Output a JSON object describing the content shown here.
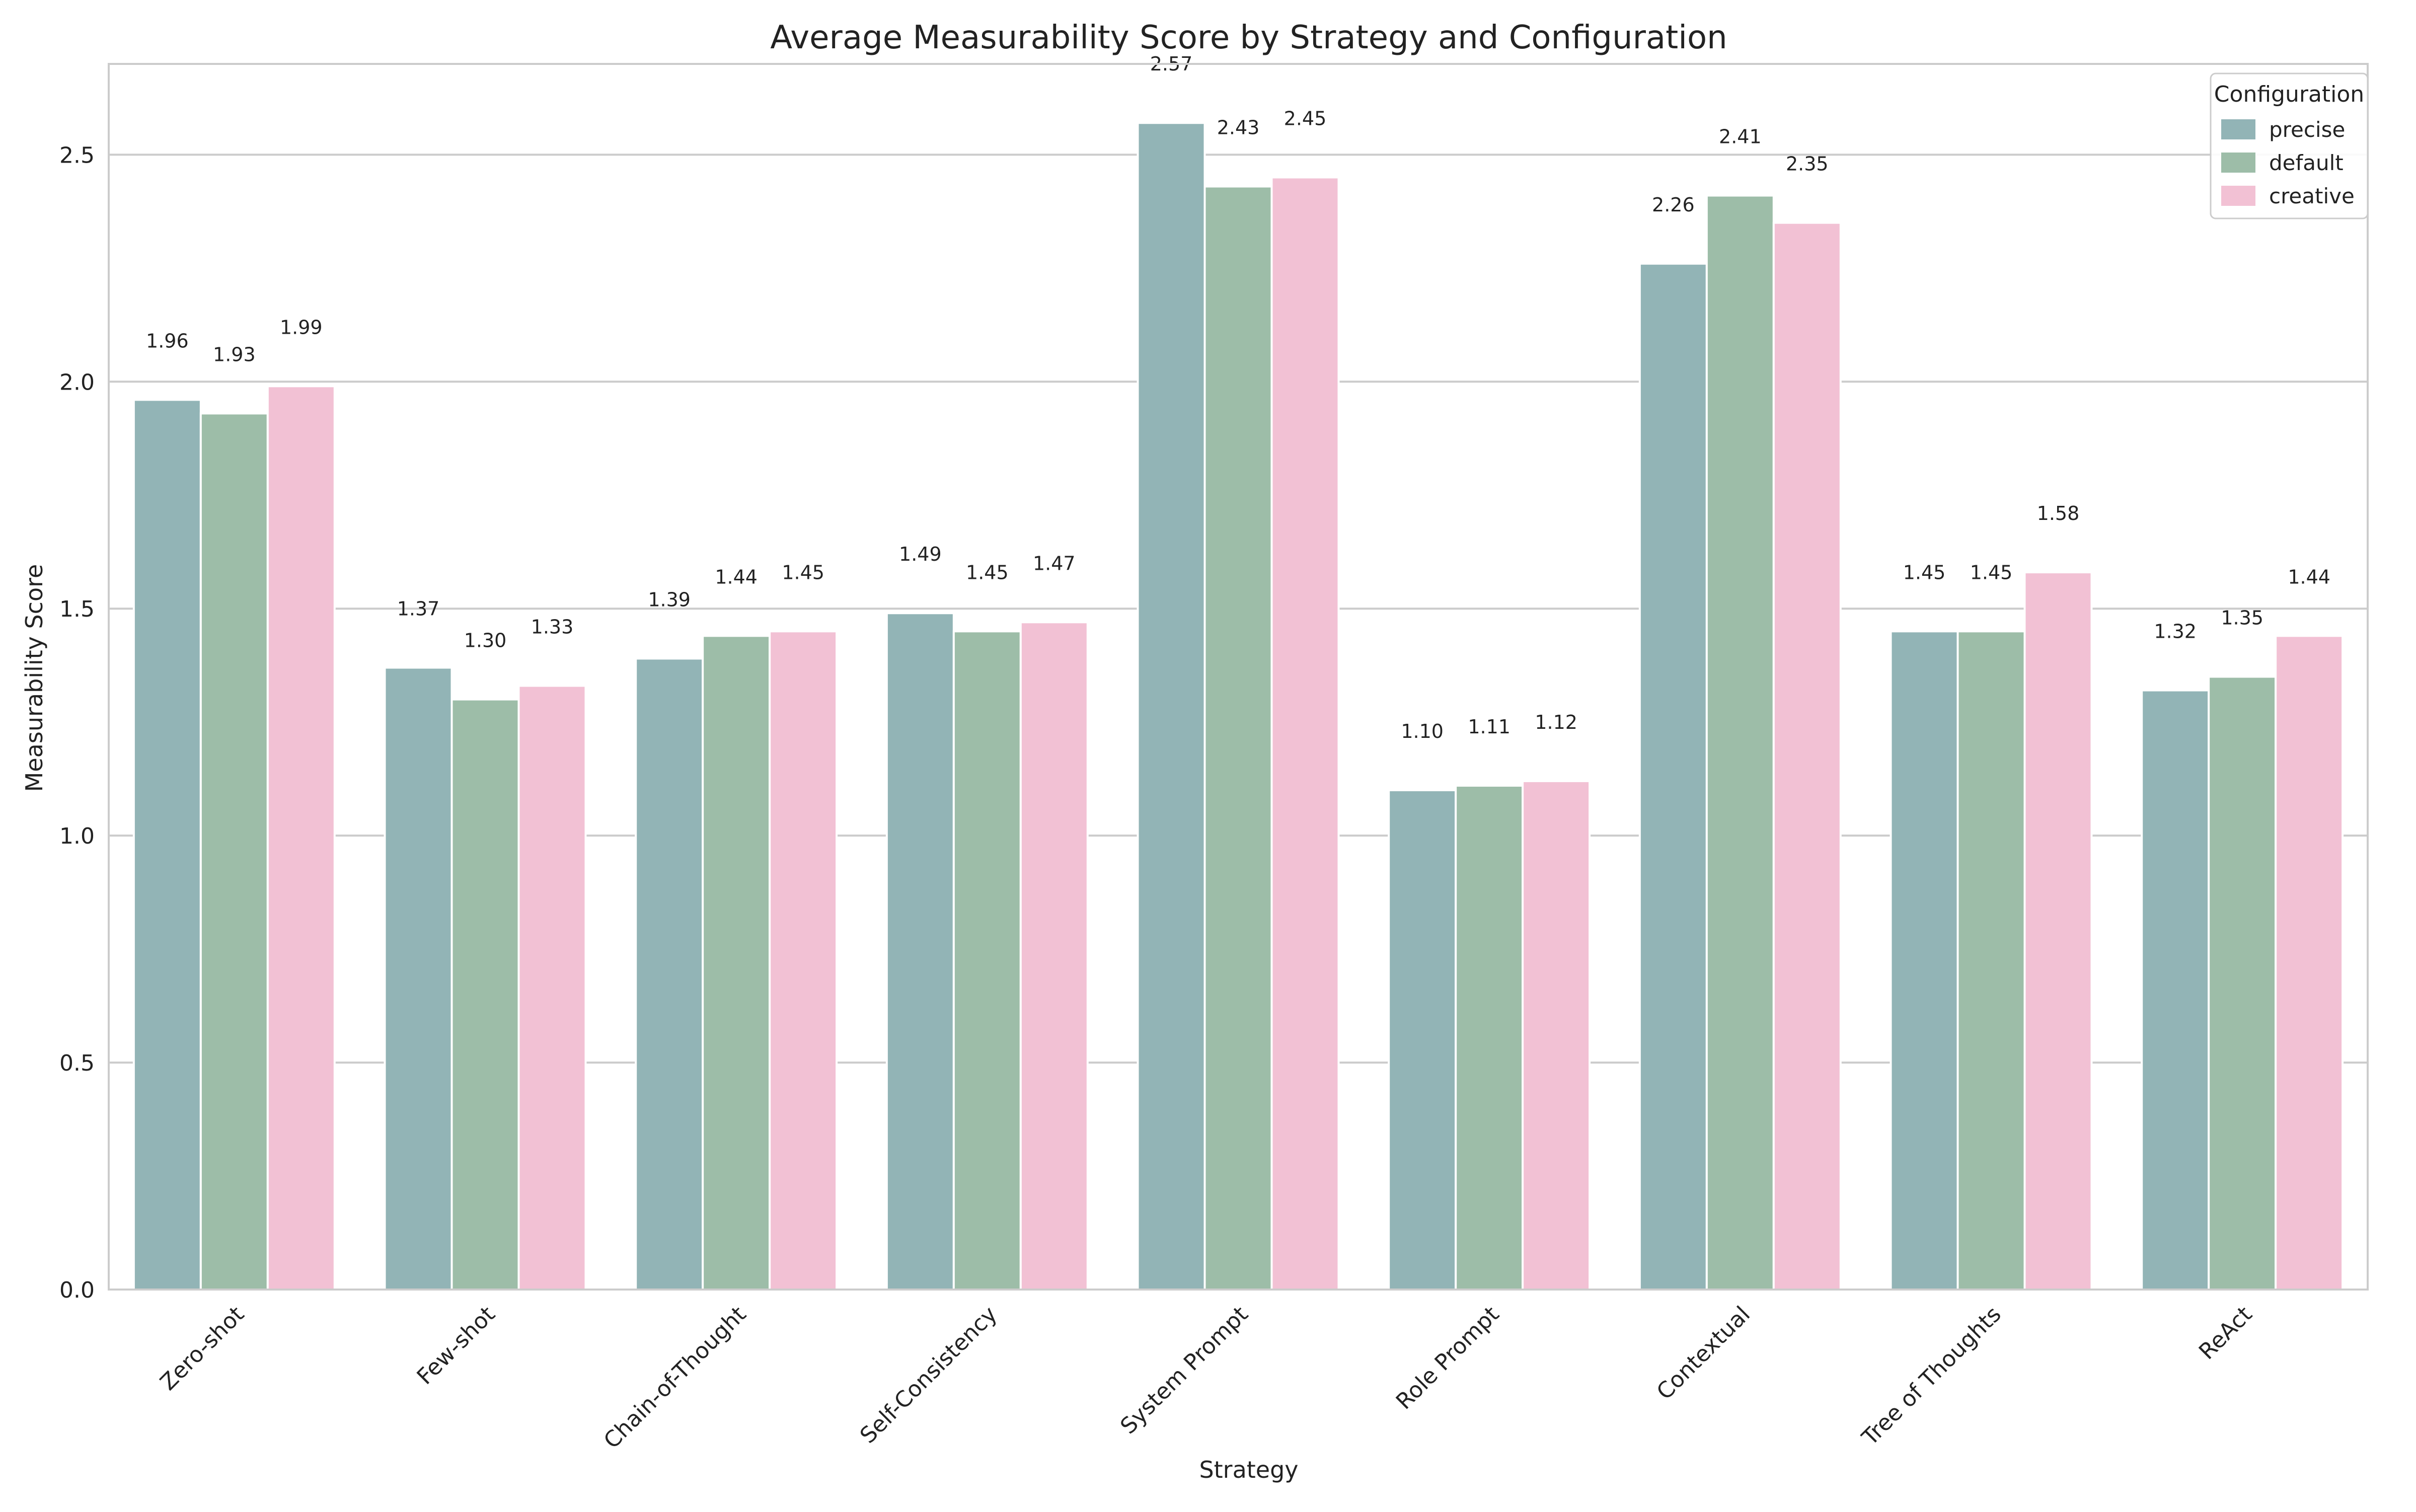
{
  "chart_data": {
    "type": "bar",
    "title": "Average Measurability Score by Strategy and Configuration",
    "xlabel": "Strategy",
    "ylabel": "Measurability Score",
    "ylim": [
      0,
      2.7
    ],
    "yticks": [
      0.0,
      0.5,
      1.0,
      1.5,
      2.0,
      2.5
    ],
    "ytick_labels": [
      "0.0",
      "0.5",
      "1.0",
      "1.5",
      "2.0",
      "2.5"
    ],
    "grid": "horizontal",
    "legend_title": "Configuration",
    "legend_position": "top-right",
    "categories": [
      "Zero-shot",
      "Few-shot",
      "Chain-of-Thought",
      "Self-Consistency",
      "System Prompt",
      "Role Prompt",
      "Contextual",
      "Tree of Thoughts",
      "ReAct"
    ],
    "series": [
      {
        "name": "precise",
        "color": "#92b4b6",
        "values": [
          1.96,
          1.37,
          1.39,
          1.49,
          2.57,
          1.1,
          2.26,
          1.45,
          1.32
        ],
        "labels": [
          "1.96",
          "1.37",
          "1.39",
          "1.49",
          "2.57",
          "1.10",
          "2.26",
          "1.45",
          "1.32"
        ]
      },
      {
        "name": "default",
        "color": "#9dbda8",
        "values": [
          1.93,
          1.3,
          1.44,
          1.45,
          2.43,
          1.11,
          2.41,
          1.45,
          1.35
        ],
        "labels": [
          "1.93",
          "1.30",
          "1.44",
          "1.45",
          "2.43",
          "1.11",
          "2.41",
          "1.45",
          "1.35"
        ]
      },
      {
        "name": "creative",
        "color": "#f2c1d4",
        "values": [
          1.99,
          1.33,
          1.45,
          1.47,
          2.45,
          1.12,
          2.35,
          1.58,
          1.44
        ],
        "labels": [
          "1.99",
          "1.33",
          "1.45",
          "1.47",
          "2.45",
          "1.12",
          "2.35",
          "1.58",
          "1.44"
        ]
      }
    ]
  }
}
